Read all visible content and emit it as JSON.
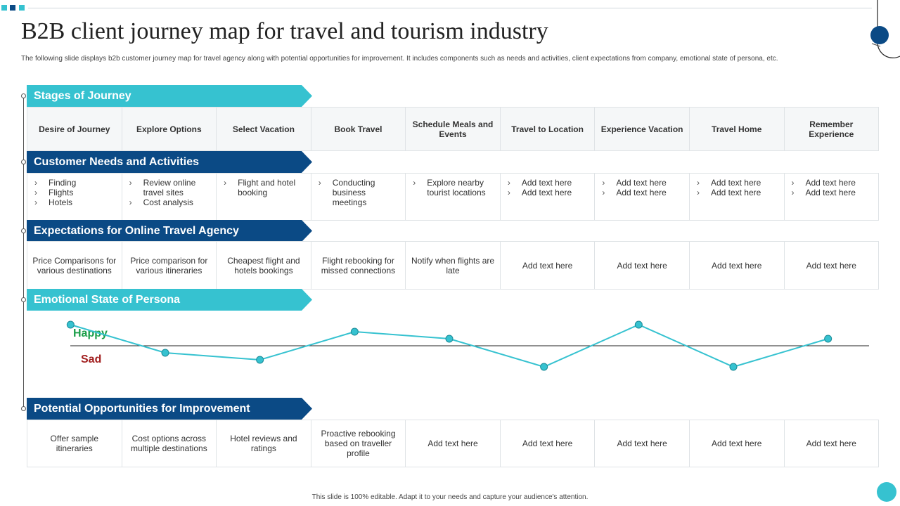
{
  "title": "B2B client journey map for travel and tourism industry",
  "subtitle": "The following slide displays b2b customer journey map  for travel agency along with potential opportunities for improvement. It includes components such as needs and activities, client expectations from company, emotional  state of persona, etc.",
  "footer": "This slide is 100% editable.  Adapt it to your needs and capture your audience's attention.",
  "colors": {
    "light_teal": "#36c2d0",
    "dark_blue": "#0b4a85",
    "happy": "#1a9e48",
    "sad": "#a11e1e"
  },
  "sections": {
    "stages": "Stages of Journey",
    "needs": "Customer Needs and Activities",
    "expectations": "Expectations for Online  Travel Agency",
    "emotional": "Emotional  State of Persona",
    "opportunities": "Potential Opportunities for Improvement"
  },
  "stages": [
    "Desire of Journey",
    "Explore Options",
    "Select Vacation",
    "Book Travel",
    "Schedule Meals and Events",
    "Travel to Location",
    "Experience Vacation",
    "Travel Home",
    "Remember Experience"
  ],
  "needs": [
    [
      "Finding",
      "Flights",
      "Hotels"
    ],
    [
      "Review online travel sites",
      "Cost analysis"
    ],
    [
      "Flight and hotel booking"
    ],
    [
      "Conducting business meetings"
    ],
    [
      "Explore nearby tourist locations"
    ],
    [
      "Add text here",
      "Add text here"
    ],
    [
      "Add text here",
      "Add text here"
    ],
    [
      "Add text here",
      "Add text here"
    ],
    [
      "Add text here",
      "Add text here"
    ]
  ],
  "expectations": [
    "Price Comparisons for various destinations",
    "Price comparison for various itineraries",
    "Cheapest flight and hotels bookings",
    "Flight rebooking for missed connections",
    "Notify when flights are late",
    "Add text here",
    "Add text here",
    "Add text here",
    "Add text here"
  ],
  "emotion": {
    "happy_label": "Happy",
    "sad_label": "Sad",
    "values": [
      0.75,
      -0.25,
      -0.5,
      0.5,
      0.25,
      -0.75,
      0.75,
      -0.75,
      0.25
    ]
  },
  "opportunities": [
    "Offer sample itineraries",
    "Cost options across multiple destinations",
    "Hotel reviews and ratings",
    "Proactive rebooking based on traveller profile",
    "Add text here",
    "Add text here",
    "Add text here",
    "Add text here",
    "Add text here"
  ]
}
